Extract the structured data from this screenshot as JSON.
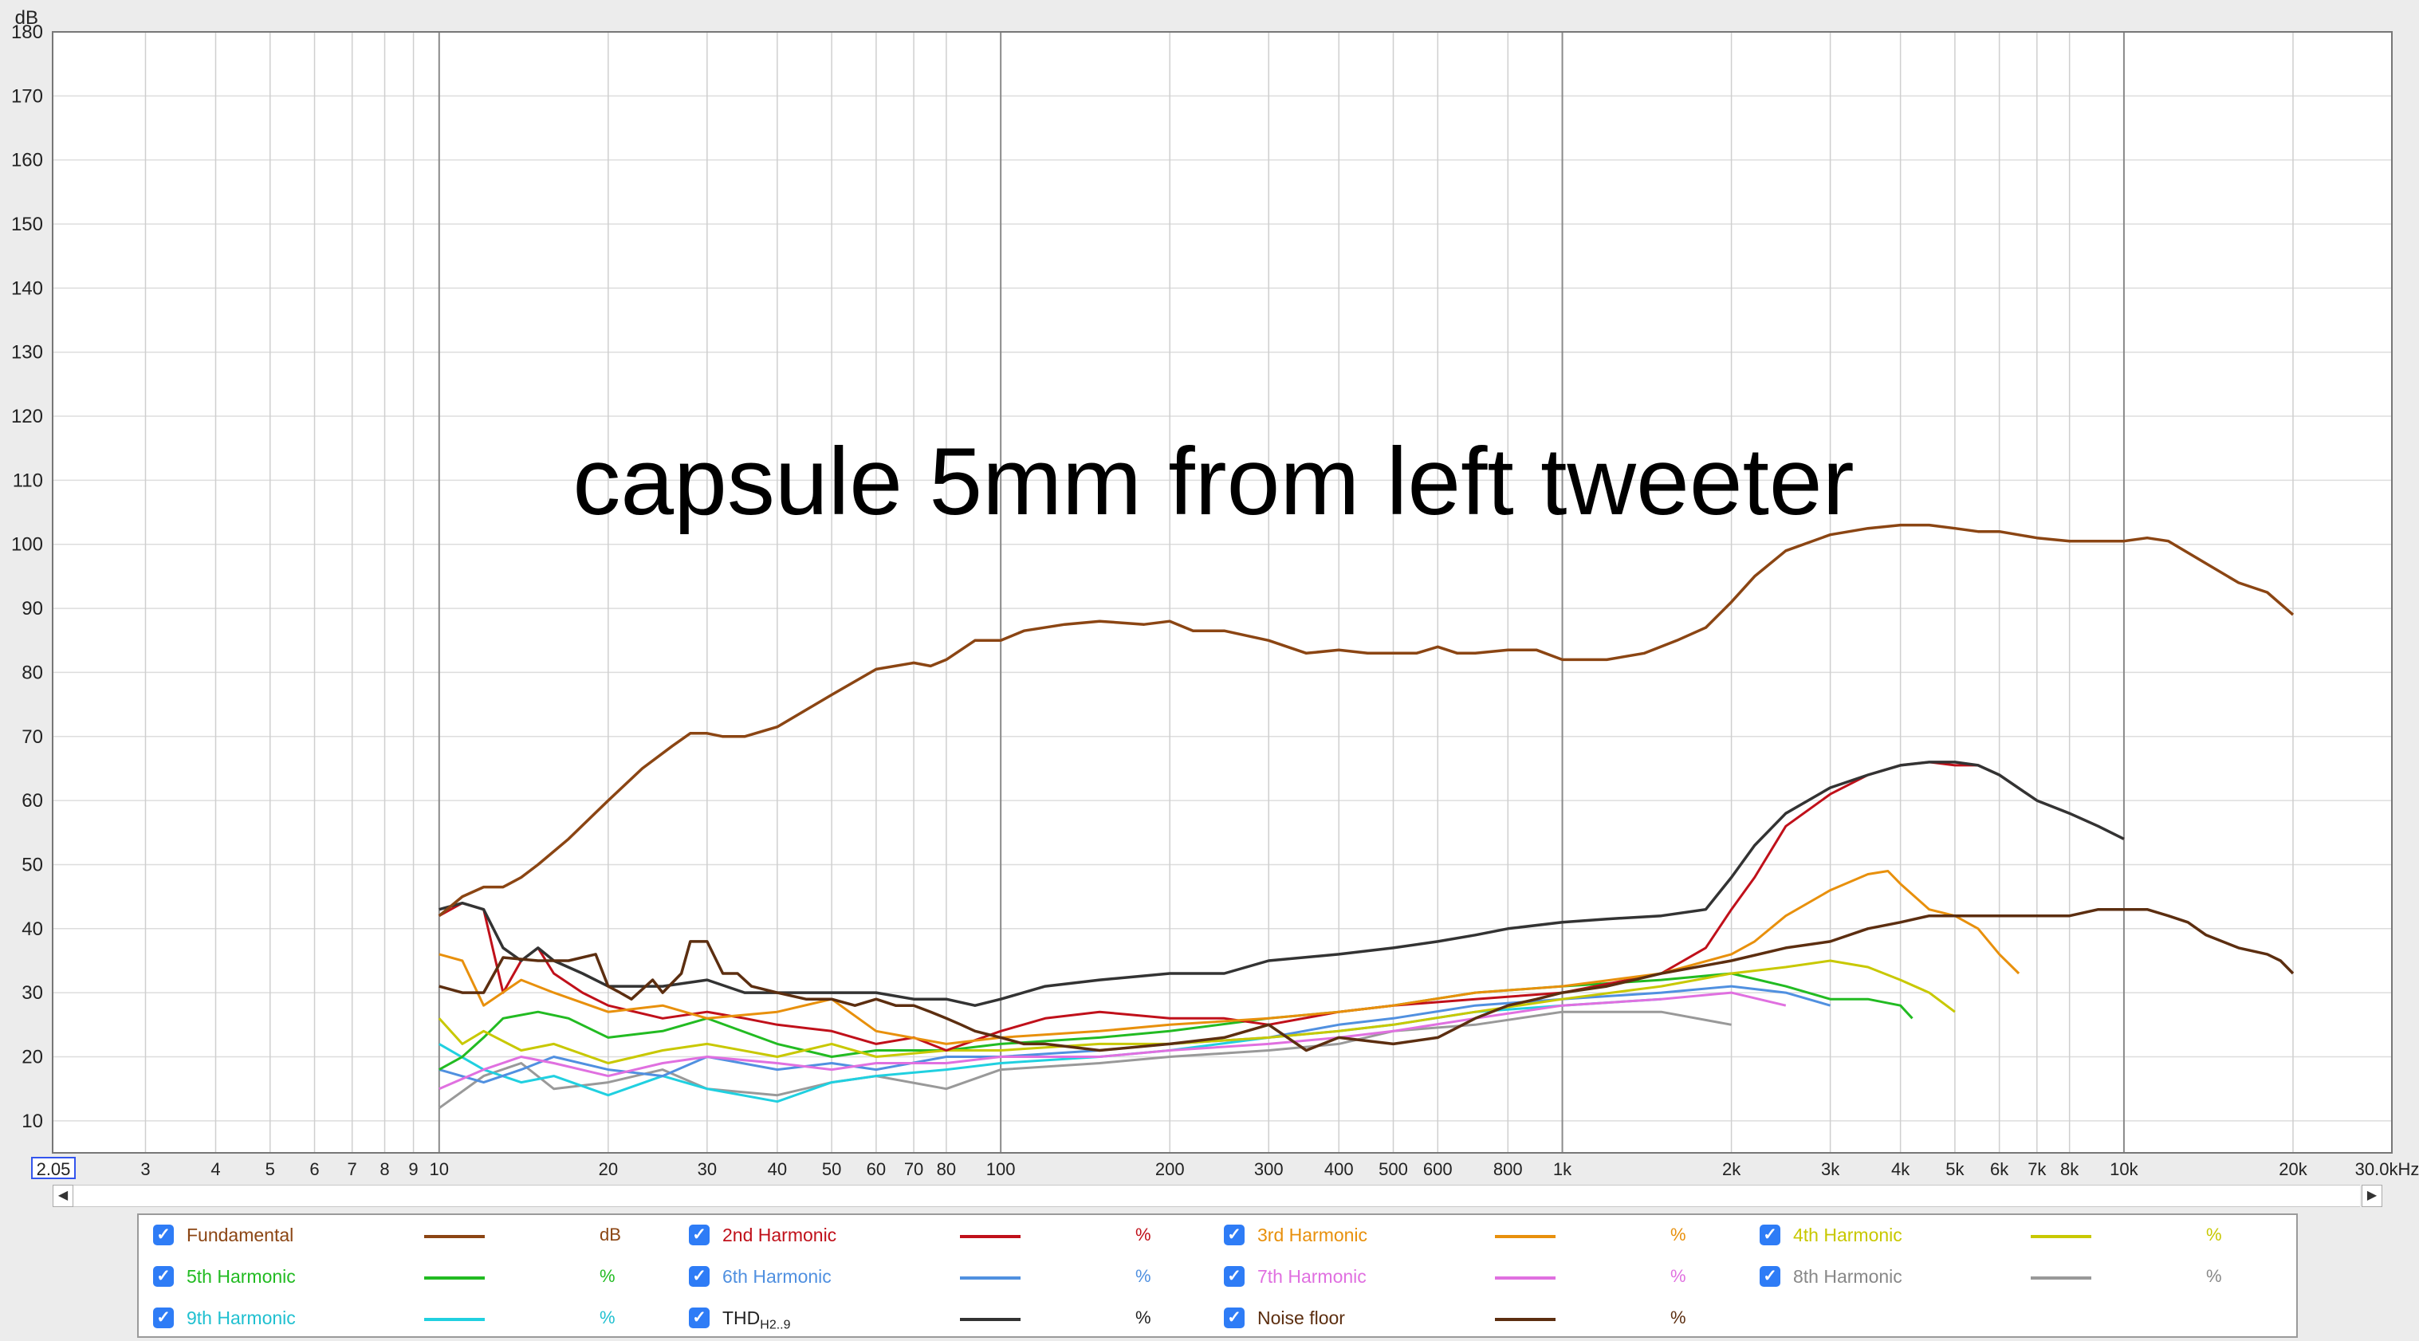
{
  "chart_data": {
    "type": "line",
    "title": "capsule 5mm from left tweeter",
    "ylabel": "dB",
    "ylim": [
      5,
      180
    ],
    "xscale": "log",
    "xlim": [
      2.05,
      30000
    ],
    "y_ticks": [
      "10",
      "20",
      "30",
      "40",
      "50",
      "60",
      "70",
      "80",
      "90",
      "100",
      "110",
      "120",
      "130",
      "140",
      "150",
      "160",
      "170",
      "180"
    ],
    "x_ticks": [
      {
        "v": 3,
        "t": "3"
      },
      {
        "v": 4,
        "t": "4"
      },
      {
        "v": 5,
        "t": "5"
      },
      {
        "v": 6,
        "t": "6"
      },
      {
        "v": 7,
        "t": "7"
      },
      {
        "v": 8,
        "t": "8"
      },
      {
        "v": 9,
        "t": "9"
      },
      {
        "v": 10,
        "t": "10"
      },
      {
        "v": 20,
        "t": "20"
      },
      {
        "v": 30,
        "t": "30"
      },
      {
        "v": 40,
        "t": "40"
      },
      {
        "v": 50,
        "t": "50"
      },
      {
        "v": 60,
        "t": "60"
      },
      {
        "v": 70,
        "t": "70"
      },
      {
        "v": 80,
        "t": "80"
      },
      {
        "v": 100,
        "t": "100"
      },
      {
        "v": 200,
        "t": "200"
      },
      {
        "v": 300,
        "t": "300"
      },
      {
        "v": 400,
        "t": "400"
      },
      {
        "v": 500,
        "t": "500"
      },
      {
        "v": 600,
        "t": "600"
      },
      {
        "v": 800,
        "t": "800"
      },
      {
        "v": 1000,
        "t": "1k"
      },
      {
        "v": 2000,
        "t": "2k"
      },
      {
        "v": 3000,
        "t": "3k"
      },
      {
        "v": 4000,
        "t": "4k"
      },
      {
        "v": 5000,
        "t": "5k"
      },
      {
        "v": 6000,
        "t": "6k"
      },
      {
        "v": 7000,
        "t": "7k"
      },
      {
        "v": 8000,
        "t": "8k"
      },
      {
        "v": 10000,
        "t": "10k"
      },
      {
        "v": 20000,
        "t": "20k"
      },
      {
        "v": 30000,
        "t": "30.0kHz"
      }
    ],
    "x_start_label": "2.05",
    "grid": true,
    "series": [
      {
        "name": "Fundamental",
        "unit": "dB",
        "color": "#8b4513",
        "x": [
          10,
          11,
          12,
          13,
          14,
          15,
          17,
          20,
          23,
          26,
          28,
          30,
          32,
          35,
          40,
          50,
          60,
          70,
          75,
          80,
          90,
          100,
          110,
          130,
          150,
          180,
          200,
          220,
          250,
          300,
          350,
          400,
          450,
          500,
          550,
          600,
          650,
          700,
          800,
          900,
          1000,
          1100,
          1200,
          1400,
          1600,
          1800,
          2000,
          2200,
          2500,
          3000,
          3500,
          4000,
          4500,
          5000,
          5500,
          6000,
          7000,
          8000,
          9000,
          10000,
          11000,
          12000,
          14000,
          16000,
          18000,
          20000
        ],
        "y": [
          42,
          45,
          46.5,
          46.5,
          48,
          50,
          54,
          60,
          65,
          68.5,
          70.5,
          70.5,
          70,
          70,
          71.5,
          76.5,
          80.5,
          81.5,
          81,
          82,
          85,
          85,
          86.5,
          87.5,
          88,
          87.5,
          88,
          86.5,
          86.5,
          85,
          83,
          83.5,
          83,
          83,
          83,
          84,
          83,
          83,
          83.5,
          83.5,
          82,
          82,
          82,
          83,
          85,
          87,
          91,
          95,
          99,
          101.5,
          102.5,
          103,
          103,
          102.5,
          102,
          102,
          101,
          100.5,
          100.5,
          100.5,
          101,
          100.5,
          97,
          94,
          92.5,
          89
        ]
      },
      {
        "name": "2nd Harmonic",
        "unit": "%",
        "color": "#c0101a",
        "x": [
          10,
          11,
          12,
          13,
          14,
          15,
          16,
          18,
          20,
          25,
          30,
          35,
          40,
          50,
          60,
          70,
          80,
          100,
          120,
          150,
          200,
          250,
          300,
          400,
          500,
          700,
          1000,
          1500,
          1800,
          2000,
          2200,
          2500,
          3000,
          3500,
          4000,
          4500,
          5000,
          5500,
          6000,
          7000,
          8000,
          9000,
          10000
        ],
        "y": [
          42,
          44,
          43,
          30,
          35,
          37,
          33,
          30,
          28,
          26,
          27,
          26,
          25,
          24,
          22,
          23,
          21,
          24,
          26,
          27,
          26,
          26,
          25,
          27,
          28,
          29,
          30,
          33,
          37,
          43,
          48,
          56,
          61,
          64,
          65.5,
          66,
          65.5,
          65.5,
          64,
          60,
          58,
          56,
          54
        ]
      },
      {
        "name": "3rd Harmonic",
        "unit": "%",
        "color": "#e8900c",
        "x": [
          10,
          11,
          12,
          14,
          16,
          20,
          25,
          30,
          40,
          50,
          60,
          80,
          100,
          150,
          200,
          300,
          400,
          500,
          700,
          1000,
          1500,
          2000,
          2200,
          2500,
          3000,
          3500,
          3800,
          4000,
          4500,
          5000,
          5500,
          6000,
          6500
        ],
        "y": [
          36,
          35,
          28,
          32,
          30,
          27,
          28,
          26,
          27,
          29,
          24,
          22,
          23,
          24,
          25,
          26,
          27,
          28,
          30,
          31,
          33,
          36,
          38,
          42,
          46,
          48.5,
          49,
          47,
          43,
          42,
          40,
          36,
          33
        ]
      },
      {
        "name": "4th Harmonic",
        "unit": "%",
        "color": "#c8c800",
        "x": [
          10,
          11,
          12,
          14,
          16,
          20,
          25,
          30,
          40,
          50,
          60,
          80,
          100,
          150,
          200,
          300,
          400,
          500,
          700,
          1000,
          1500,
          2000,
          2500,
          3000,
          3500,
          4000,
          4500,
          5000
        ],
        "y": [
          26,
          22,
          24,
          21,
          22,
          19,
          21,
          22,
          20,
          22,
          20,
          21,
          21,
          22,
          22,
          23,
          24,
          25,
          27,
          29,
          31,
          33,
          34,
          35,
          34,
          32,
          30,
          27
        ]
      },
      {
        "name": "5th Harmonic",
        "unit": "%",
        "color": "#22bb22",
        "x": [
          10,
          11,
          12,
          13,
          15,
          17,
          20,
          25,
          30,
          40,
          50,
          60,
          80,
          100,
          150,
          200,
          300,
          400,
          500,
          700,
          1000,
          1500,
          2000,
          2500,
          3000,
          3500,
          4000,
          4200
        ],
        "y": [
          18,
          20,
          23,
          26,
          27,
          26,
          23,
          24,
          26,
          22,
          20,
          21,
          21,
          22,
          23,
          24,
          26,
          27,
          28,
          30,
          31,
          32,
          33,
          31,
          29,
          29,
          28,
          26
        ]
      },
      {
        "name": "6th Harmonic",
        "unit": "%",
        "color": "#5090e0",
        "x": [
          10,
          12,
          14,
          16,
          20,
          25,
          30,
          40,
          50,
          60,
          80,
          100,
          150,
          200,
          300,
          400,
          500,
          700,
          1000,
          1500,
          2000,
          2500,
          3000
        ],
        "y": [
          18,
          16,
          18,
          20,
          18,
          17,
          20,
          18,
          19,
          18,
          20,
          20,
          21,
          22,
          23,
          25,
          26,
          28,
          29,
          30,
          31,
          30,
          28
        ]
      },
      {
        "name": "7th Harmonic",
        "unit": "%",
        "color": "#e070e0",
        "x": [
          10,
          12,
          14,
          16,
          20,
          25,
          30,
          40,
          50,
          60,
          80,
          100,
          150,
          200,
          300,
          400,
          500,
          700,
          1000,
          1500,
          2000,
          2500
        ],
        "y": [
          15,
          18,
          20,
          19,
          17,
          19,
          20,
          19,
          18,
          19,
          19,
          20,
          20,
          21,
          22,
          23,
          24,
          26,
          28,
          29,
          30,
          28
        ]
      },
      {
        "name": "8th Harmonic",
        "unit": "%",
        "color": "#999999",
        "x": [
          10,
          12,
          14,
          16,
          20,
          25,
          30,
          40,
          50,
          60,
          80,
          100,
          150,
          200,
          300,
          400,
          500,
          700,
          1000,
          1500,
          2000
        ],
        "y": [
          12,
          17,
          19,
          15,
          16,
          18,
          15,
          14,
          16,
          17,
          15,
          18,
          19,
          20,
          21,
          22,
          24,
          25,
          27,
          27,
          25
        ]
      },
      {
        "name": "9th Harmonic",
        "unit": "%",
        "color": "#20d0e0",
        "x": [
          10,
          12,
          14,
          16,
          20,
          25,
          30,
          40,
          50,
          60,
          80,
          100,
          150,
          200,
          300,
          400,
          500,
          700,
          1000,
          1500
        ],
        "y": [
          22,
          18,
          16,
          17,
          14,
          17,
          15,
          13,
          16,
          17,
          18,
          19,
          20,
          21,
          23,
          24,
          25,
          27,
          28,
          29
        ]
      },
      {
        "name": "THD",
        "unit": "%",
        "color": "#333333",
        "x": [
          10,
          11,
          12,
          13,
          14,
          15,
          16,
          18,
          20,
          25,
          30,
          35,
          40,
          50,
          60,
          70,
          80,
          90,
          100,
          120,
          150,
          200,
          250,
          300,
          400,
          500,
          600,
          700,
          800,
          1000,
          1200,
          1500,
          1800,
          2000,
          2200,
          2500,
          3000,
          3500,
          4000,
          4500,
          5000,
          5500,
          6000,
          7000,
          8000,
          9000,
          10000
        ],
        "y": [
          43,
          44,
          43,
          37,
          35,
          37,
          35,
          33,
          31,
          31,
          32,
          30,
          30,
          30,
          30,
          29,
          29,
          28,
          29,
          31,
          32,
          33,
          33,
          35,
          36,
          37,
          38,
          39,
          40,
          41,
          41.5,
          42,
          43,
          48,
          53,
          58,
          62,
          64,
          65.5,
          66,
          66,
          65.5,
          64,
          60,
          58,
          56,
          54
        ]
      },
      {
        "name": "Noise floor",
        "unit": "%",
        "color": "#5c2e10",
        "x": [
          10,
          11,
          12,
          13,
          15,
          17,
          19,
          20,
          21,
          22,
          24,
          25,
          27,
          28,
          30,
          32,
          34,
          36,
          40,
          45,
          50,
          55,
          60,
          65,
          70,
          75,
          80,
          85,
          90,
          100,
          110,
          120,
          150,
          200,
          250,
          300,
          350,
          400,
          500,
          600,
          700,
          800,
          900,
          1000,
          1200,
          1500,
          2000,
          2500,
          3000,
          3500,
          4000,
          4500,
          5000,
          5500,
          6000,
          7000,
          8000,
          9000,
          10000,
          11000,
          12000,
          13000,
          14000,
          16000,
          18000,
          19000,
          20000
        ],
        "y": [
          31,
          30,
          30,
          35.5,
          35,
          35,
          36,
          31,
          30,
          29,
          32,
          30,
          33,
          38,
          38,
          33,
          33,
          31,
          30,
          29,
          29,
          28,
          29,
          28,
          28,
          27,
          26,
          25,
          24,
          23,
          22,
          22,
          21,
          22,
          23,
          25,
          21,
          23,
          22,
          23,
          26,
          28,
          29,
          30,
          31,
          33,
          35,
          37,
          38,
          40,
          41,
          42,
          42,
          42,
          42,
          42,
          42,
          43,
          43,
          43,
          42,
          41,
          39,
          37,
          36,
          35,
          33
        ]
      }
    ]
  },
  "legend": {
    "items": [
      {
        "label": "Fundamental",
        "unit": "dB",
        "color": "#8b4513",
        "text_color": "#8b4513"
      },
      {
        "label": "2nd Harmonic",
        "unit": "%",
        "color": "#c0101a",
        "text_color": "#c0101a"
      },
      {
        "label": "3rd Harmonic",
        "unit": "%",
        "color": "#e8900c",
        "text_color": "#e8900c"
      },
      {
        "label": "4th Harmonic",
        "unit": "%",
        "color": "#c8c800",
        "text_color": "#c8c800"
      },
      {
        "label": "5th Harmonic",
        "unit": "%",
        "color": "#22bb22",
        "text_color": "#22bb22"
      },
      {
        "label": "6th Harmonic",
        "unit": "%",
        "color": "#5090e0",
        "text_color": "#5090e0"
      },
      {
        "label": "7th Harmonic",
        "unit": "%",
        "color": "#e070e0",
        "text_color": "#e070e0"
      },
      {
        "label": "8th Harmonic",
        "unit": "%",
        "color": "#999999",
        "text_color": "#888888"
      },
      {
        "label": "9th Harmonic",
        "unit": "%",
        "color": "#20d0e0",
        "text_color": "#20c0d0"
      },
      {
        "label": "THD",
        "sub": "H2..9",
        "unit": "%",
        "color": "#333333",
        "text_color": "#222222"
      },
      {
        "label": "Noise floor",
        "unit": "%",
        "color": "#5c2e10",
        "text_color": "#5c2e10"
      }
    ],
    "check_glyph": "✓"
  },
  "scrollbar": {
    "left_arrow": "◀",
    "right_arrow": "▶"
  }
}
